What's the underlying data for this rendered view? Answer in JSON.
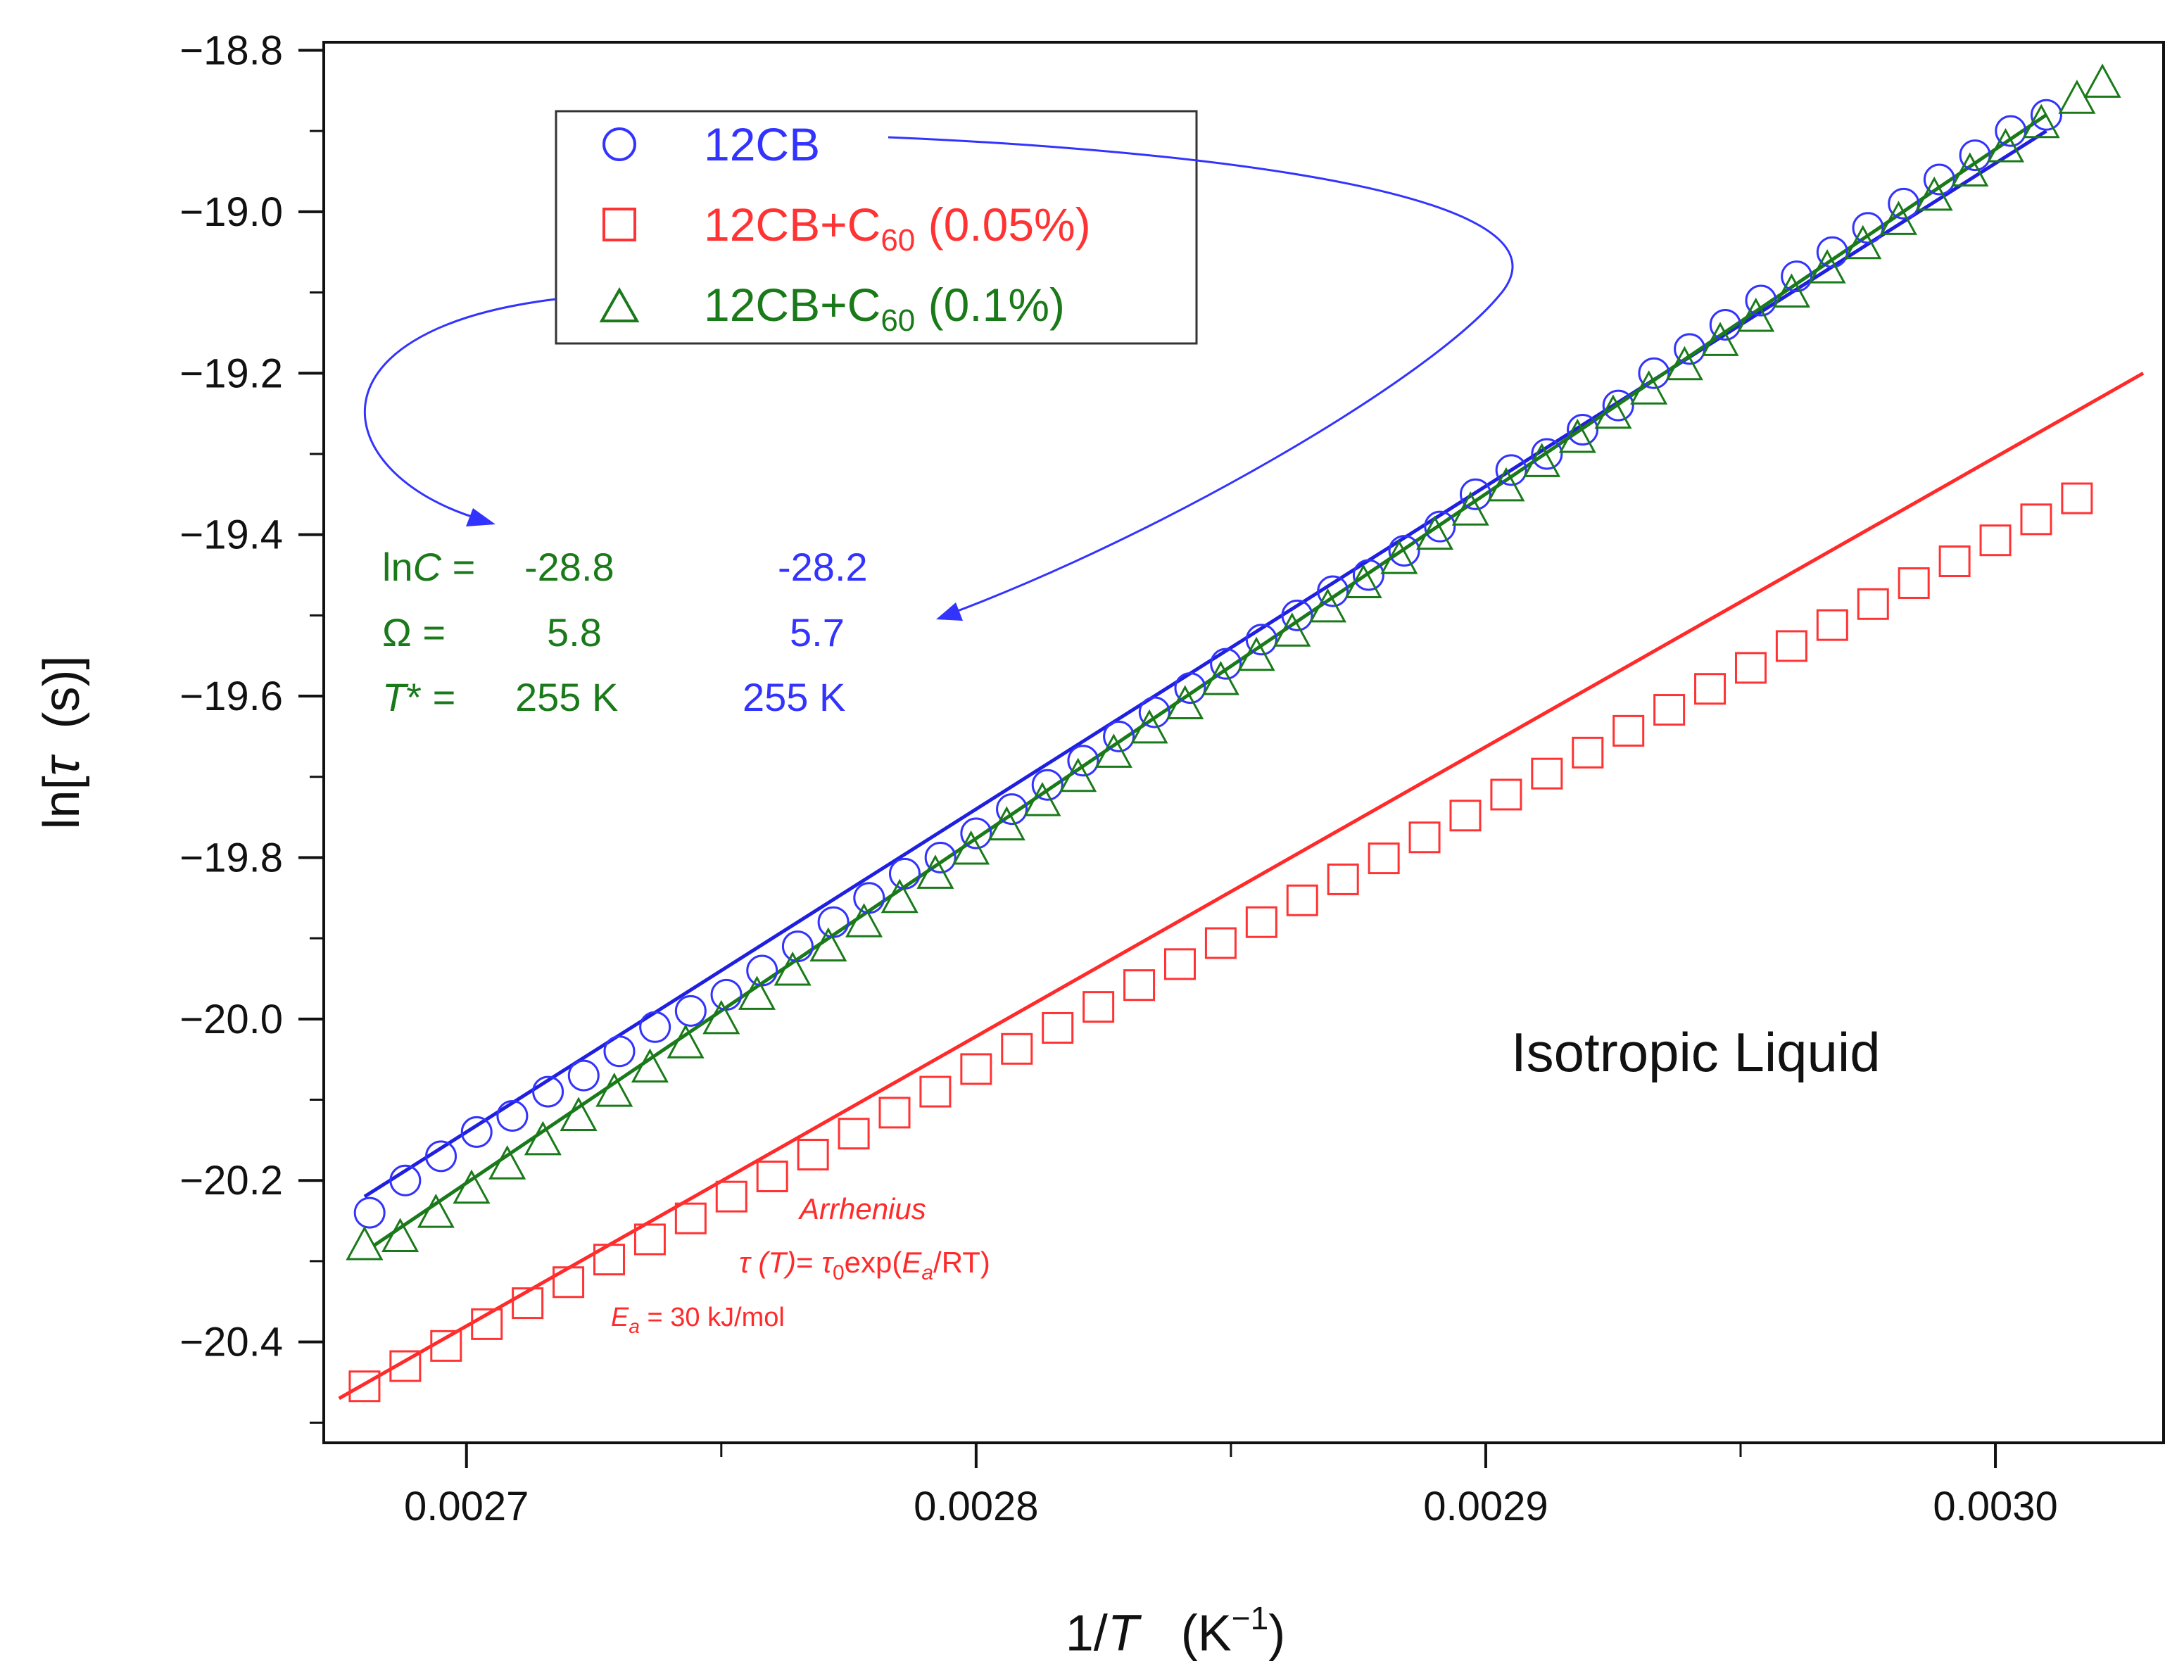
{
  "chart_data": {
    "type": "scatter",
    "title": "",
    "xlabel": "1/T (K⁻¹)",
    "xlabel_parts": {
      "pre": "1/",
      "var": "T",
      "unit": "(K",
      "sup": "−1",
      "close": ")"
    },
    "ylabel": "ln[ τ (s)]",
    "ylabel_parts": {
      "pre": "ln[",
      "var": "τ",
      "unit": "(s)]"
    },
    "xlim": [
      0.002672,
      0.003033
    ],
    "ylim": [
      -20.525,
      -18.79
    ],
    "x_ticks": [
      0.0027,
      0.0028,
      0.0029,
      0.003
    ],
    "x_tick_labels": [
      "0.0027",
      "0.0028",
      "0.0029",
      "0.0030"
    ],
    "x_minor_ticks": [
      0.00275,
      0.00285,
      0.00295
    ],
    "y_ticks": [
      -20.4,
      -20.2,
      -20.0,
      -19.8,
      -19.6,
      -19.4,
      -19.2,
      -19.0,
      -18.8
    ],
    "y_tick_labels": [
      "−20.4",
      "−20.2",
      "−20.0",
      "−19.8",
      "−19.6",
      "−19.4",
      "−19.2",
      "−19.0",
      "−18.8"
    ],
    "y_minor_ticks": [
      -20.5,
      -20.3,
      -20.1,
      -19.9,
      -19.7,
      -19.5,
      -19.3,
      -19.1,
      -18.9
    ],
    "grid": false,
    "legend_position": "top-left",
    "series": [
      {
        "name": "12CB",
        "legend_parts": {
          "main": "12CB",
          "sub": "",
          "tail": ""
        },
        "marker": "circle",
        "color": "#3333ff",
        "x": [
          0.002681,
          0.002688,
          0.002695,
          0.002702,
          0.002709,
          0.002716,
          0.002723,
          0.00273,
          0.002737,
          0.002744,
          0.002751,
          0.002758,
          0.002765,
          0.002772,
          0.002779,
          0.002786,
          0.002793,
          0.0028,
          0.002807,
          0.002814,
          0.002821,
          0.002828,
          0.002835,
          0.002842,
          0.002849,
          0.002856,
          0.002863,
          0.00287,
          0.002877,
          0.002884,
          0.002891,
          0.002898,
          0.002905,
          0.002912,
          0.002919,
          0.002926,
          0.002933,
          0.00294,
          0.002947,
          0.002954,
          0.002961,
          0.002968,
          0.002975,
          0.002982,
          0.002989,
          0.002996,
          0.003003,
          0.00301
        ],
        "y": [
          -20.24,
          -20.2,
          -20.17,
          -20.14,
          -20.12,
          -20.09,
          -20.07,
          -20.04,
          -20.01,
          -19.99,
          -19.97,
          -19.94,
          -19.91,
          -19.88,
          -19.85,
          -19.82,
          -19.8,
          -19.77,
          -19.74,
          -19.71,
          -19.68,
          -19.65,
          -19.62,
          -19.59,
          -19.56,
          -19.53,
          -19.5,
          -19.47,
          -19.45,
          -19.42,
          -19.39,
          -19.35,
          -19.32,
          -19.3,
          -19.27,
          -19.24,
          -19.2,
          -19.17,
          -19.14,
          -19.11,
          -19.08,
          -19.05,
          -19.02,
          -18.99,
          -18.96,
          -18.93,
          -18.9,
          -18.88
        ]
      },
      {
        "name": "12CB+C60 (0.05%)",
        "legend_parts": {
          "main": "12CB+C",
          "sub": "60",
          "tail": " (0.05%)"
        },
        "marker": "square",
        "color": "#ff3333",
        "x": [
          0.00268,
          0.002688,
          0.002696,
          0.002704,
          0.002712,
          0.00272,
          0.002728,
          0.002736,
          0.002744,
          0.002752,
          0.00276,
          0.002768,
          0.002776,
          0.002784,
          0.002792,
          0.0028,
          0.002808,
          0.002816,
          0.002824,
          0.002832,
          0.00284,
          0.002848,
          0.002856,
          0.002864,
          0.002872,
          0.00288,
          0.002888,
          0.002896,
          0.002904,
          0.002912,
          0.00292,
          0.002928,
          0.002936,
          0.002944,
          0.002952,
          0.00296,
          0.002968,
          0.002976,
          0.002984,
          0.002992,
          0.003,
          0.003008,
          0.003016
        ],
        "y": [
          -20.455,
          -20.43,
          -20.405,
          -20.378,
          -20.352,
          -20.326,
          -20.298,
          -20.273,
          -20.247,
          -20.22,
          -20.195,
          -20.168,
          -20.142,
          -20.116,
          -20.09,
          -20.062,
          -20.037,
          -20.011,
          -19.985,
          -19.958,
          -19.932,
          -19.906,
          -19.88,
          -19.853,
          -19.827,
          -19.801,
          -19.775,
          -19.748,
          -19.722,
          -19.696,
          -19.67,
          -19.643,
          -19.617,
          -19.591,
          -19.565,
          -19.538,
          -19.512,
          -19.486,
          -19.46,
          -19.433,
          -19.407,
          -19.381,
          -19.355
        ]
      },
      {
        "name": "12CB+C60 (0.1%)",
        "legend_parts": {
          "main": "12CB+C",
          "sub": "60",
          "tail": " (0.1%)"
        },
        "marker": "triangle",
        "color": "#1a7a1a",
        "x": [
          0.00268,
          0.002687,
          0.002694,
          0.002701,
          0.002708,
          0.002715,
          0.002722,
          0.002729,
          0.002736,
          0.002743,
          0.00275,
          0.002757,
          0.002764,
          0.002771,
          0.002778,
          0.002785,
          0.002792,
          0.002799,
          0.002806,
          0.002813,
          0.00282,
          0.002827,
          0.002834,
          0.002841,
          0.002848,
          0.002855,
          0.002862,
          0.002869,
          0.002876,
          0.002883,
          0.00289,
          0.002897,
          0.002904,
          0.002911,
          0.002918,
          0.002925,
          0.002932,
          0.002939,
          0.002946,
          0.002953,
          0.00296,
          0.002967,
          0.002974,
          0.002981,
          0.002988,
          0.002995,
          0.003002,
          0.003009,
          0.003016,
          0.003021
        ],
        "y": [
          -20.28,
          -20.27,
          -20.24,
          -20.21,
          -20.18,
          -20.15,
          -20.12,
          -20.09,
          -20.06,
          -20.03,
          -20.0,
          -19.97,
          -19.94,
          -19.91,
          -19.88,
          -19.85,
          -19.82,
          -19.79,
          -19.76,
          -19.73,
          -19.7,
          -19.67,
          -19.64,
          -19.61,
          -19.58,
          -19.55,
          -19.52,
          -19.49,
          -19.46,
          -19.43,
          -19.4,
          -19.37,
          -19.34,
          -19.31,
          -19.28,
          -19.25,
          -19.22,
          -19.19,
          -19.16,
          -19.13,
          -19.1,
          -19.07,
          -19.04,
          -19.01,
          -18.98,
          -18.95,
          -18.92,
          -18.89,
          -18.86,
          -18.84
        ]
      }
    ],
    "fit_lines": [
      {
        "name": "12CB fit",
        "color": "#1f1fe0",
        "x": [
          0.00268,
          0.00301
        ],
        "y": [
          -20.22,
          -18.9
        ]
      },
      {
        "name": "12CB+C60 (0.1%) fit",
        "color": "#1a7a1a",
        "x": [
          0.002682,
          0.00301
        ],
        "y": [
          -20.28,
          -18.88
        ]
      },
      {
        "name": "Arrhenius fit",
        "color": "#ff2a2a",
        "x": [
          0.002675,
          0.003029
        ],
        "y": [
          -20.47,
          -19.2
        ]
      }
    ],
    "parameter_block": {
      "green": [
        {
          "label_pre": "ln",
          "label_var": "C",
          "label_post": " =",
          "value": "-28.8"
        },
        {
          "label_pre": "",
          "label_var": "",
          "label_post": "Ω =",
          "value": "5.8"
        },
        {
          "label_pre": "",
          "label_var": "T",
          "label_post": "* =",
          "value": "255 K"
        }
      ],
      "blue": [
        "-28.2",
        "5.7",
        "255 K"
      ]
    },
    "annotations": {
      "phase": "Isotropic Liquid",
      "arrhenius_title": "Arrhenius",
      "formula_parts": {
        "tau": "τ",
        "arg": " (T)",
        "eq": "= ",
        "tau0": "τ",
        "sub0": "0",
        "exp": "exp(",
        "ea": "E",
        "sub_a": "a",
        "rest": "/RT)"
      },
      "ea_parts": {
        "e": "E",
        "sub": "a",
        "rest": " = 30 kJ/mol"
      }
    }
  }
}
